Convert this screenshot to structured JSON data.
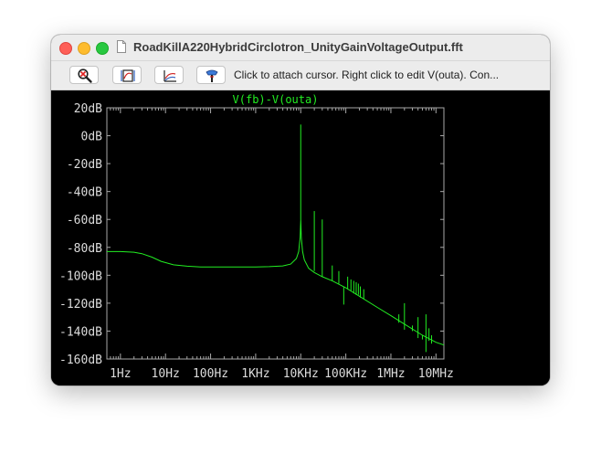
{
  "window": {
    "title": "RoadKillA220HybridCirclotron_UnityGainVoltageOutput.fft"
  },
  "toolbar": {
    "buttons": [
      {
        "icon": "zoom-cancel-icon"
      },
      {
        "icon": "autorange-icon"
      },
      {
        "icon": "pick-trace-icon"
      },
      {
        "icon": "probe-icon"
      }
    ],
    "status_text": "Click to attach cursor. Right click to edit V(outa).  Con..."
  },
  "colors": {
    "trace": "#22ee22",
    "grid_frame": "#a8a8a8",
    "axis_text": "#dcdcdc",
    "background": "#000000"
  },
  "chart_data": {
    "type": "line",
    "title": "V(fb)-V(outa)",
    "xscale": "log",
    "xlim": [
      0.5,
      15000000
    ],
    "ylim": [
      -160,
      20
    ],
    "grid": false,
    "y_ticks": [
      20,
      0,
      -20,
      -40,
      -60,
      -80,
      -100,
      -120,
      -140,
      -160
    ],
    "y_tick_labels": [
      "20dB",
      "0dB",
      "-20dB",
      "-40dB",
      "-60dB",
      "-80dB",
      "-100dB",
      "-120dB",
      "-140dB",
      "-160dB"
    ],
    "x_ticks": [
      1,
      10,
      100,
      1000,
      10000,
      100000,
      1000000,
      10000000
    ],
    "x_tick_labels": [
      "1Hz",
      "10Hz",
      "100Hz",
      "1KHz",
      "10KHz",
      "100KHz",
      "1MHz",
      "10MHz"
    ],
    "series": [
      {
        "name": "V(fb)-V(outa)",
        "x": [
          0.5,
          1,
          2,
          3,
          5,
          8,
          15,
          30,
          60,
          100,
          200,
          500,
          1000,
          2000,
          4000,
          6000,
          8000,
          9000,
          9700,
          10000,
          10300,
          11000,
          12000,
          15000,
          20000,
          30000,
          50000,
          100000,
          200000,
          500000,
          1000000,
          2000000,
          5000000,
          10000000,
          15000000
        ],
        "y": [
          -83,
          -83,
          -83.5,
          -84.5,
          -87,
          -90,
          -92.5,
          -93.5,
          -94,
          -94,
          -94,
          -94,
          -94,
          -93.8,
          -93.3,
          -92,
          -88,
          -83,
          -73,
          -60,
          -73,
          -83,
          -89,
          -95,
          -98,
          -101,
          -104,
          -109,
          -115,
          -123,
          -129,
          -135,
          -143,
          -148,
          -150
        ]
      }
    ],
    "spikes": [
      {
        "x": 10000,
        "y_top": 8,
        "y_base": -60
      },
      {
        "x": 20000,
        "y_top": -54,
        "y_base": -97
      },
      {
        "x": 30000,
        "y_top": -60,
        "y_base": -101
      },
      {
        "x": 50000,
        "y_top": -93,
        "y_base": -104
      },
      {
        "x": 70000,
        "y_top": -97,
        "y_base": -106
      },
      {
        "x": 90000,
        "y_top": -121,
        "y_base": -108
      },
      {
        "x": 110000,
        "y_top": -101,
        "y_base": -110
      },
      {
        "x": 130000,
        "y_top": -103,
        "y_base": -111
      },
      {
        "x": 150000,
        "y_top": -104,
        "y_base": -113
      },
      {
        "x": 170000,
        "y_top": -105,
        "y_base": -114
      },
      {
        "x": 190000,
        "y_top": -106,
        "y_base": -114
      },
      {
        "x": 210000,
        "y_top": -108,
        "y_base": -116
      },
      {
        "x": 250000,
        "y_top": -110,
        "y_base": -117
      },
      {
        "x": 1500000,
        "y_top": -128,
        "y_base": -134
      },
      {
        "x": 2000000,
        "y_top": -120,
        "y_base": -139
      },
      {
        "x": 3000000,
        "y_top": -136,
        "y_base": -140
      },
      {
        "x": 4000000,
        "y_top": -130,
        "y_base": -145
      },
      {
        "x": 5000000,
        "y_top": -143,
        "y_base": -146
      },
      {
        "x": 6000000,
        "y_top": -128,
        "y_base": -155
      },
      {
        "x": 7000000,
        "y_top": -138,
        "y_base": -147
      },
      {
        "x": 8000000,
        "y_top": -143,
        "y_base": -149
      }
    ]
  }
}
